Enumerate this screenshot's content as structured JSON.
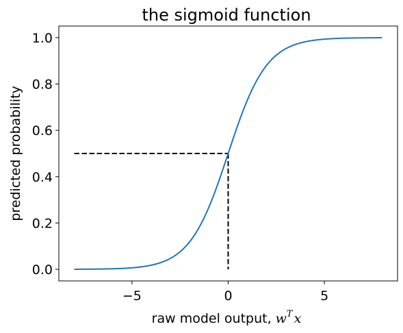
{
  "chart_data": {
    "type": "line",
    "title": "the sigmoid function",
    "xlabel": {
      "text": "raw model output, ",
      "math_base": "w",
      "math_sup": "T",
      "math_tail": "x"
    },
    "ylabel": "predicted probability",
    "xlim": [
      -8.8,
      8.8
    ],
    "ylim": [
      -0.05,
      1.05
    ],
    "x_ticks": [
      -5,
      0,
      5
    ],
    "x_tick_labels": [
      "−5",
      "0",
      "5"
    ],
    "y_ticks": [
      0.0,
      0.2,
      0.4,
      0.6,
      0.8,
      1.0
    ],
    "y_tick_labels": [
      "0.0",
      "0.2",
      "0.4",
      "0.6",
      "0.8",
      "1.0"
    ],
    "grid": false,
    "series": [
      {
        "function": "sigmoid",
        "x_range": [
          -8,
          8
        ],
        "color": "#1f77b4"
      }
    ],
    "reference_lines": [
      {
        "style": "dashed",
        "color": "#000000",
        "from": [
          -8,
          0.5
        ],
        "to": [
          0,
          0.5
        ]
      },
      {
        "style": "dashed",
        "color": "#000000",
        "from": [
          0,
          0.5
        ],
        "to": [
          0,
          0.0
        ]
      }
    ]
  }
}
